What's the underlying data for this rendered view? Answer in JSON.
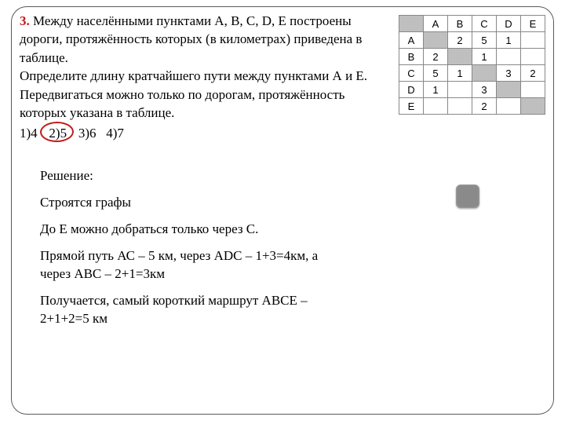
{
  "problem": {
    "number": "3.",
    "text_part1": " Между  населёнными  пунктами А, B, C, D, E построены дороги, протяжённость которых (в километрах) приведена в таблице.",
    "text_part2": "Определите длину кратчайшего пути между пунктами А и E. Передвигаться можно только по дорогам, протяжённость которых указана в таблице.",
    "answers": {
      "a1": "1)4",
      "a2": "2)5",
      "a3": "3)6",
      "a4": "4)7"
    }
  },
  "table": {
    "headers": [
      "",
      "A",
      "B",
      "C",
      "D",
      "E"
    ],
    "rows": [
      {
        "label": "A",
        "cells": [
          "",
          "2",
          "5",
          "1",
          ""
        ],
        "shaded_index": 0
      },
      {
        "label": "B",
        "cells": [
          "2",
          "",
          "1",
          "",
          ""
        ],
        "shaded_index": 1
      },
      {
        "label": "C",
        "cells": [
          "5",
          "1",
          "",
          "3",
          "2"
        ],
        "shaded_index": 2
      },
      {
        "label": "D",
        "cells": [
          "1",
          "",
          "3",
          "",
          ""
        ],
        "shaded_index": 3
      },
      {
        "label": "E",
        "cells": [
          "",
          "",
          "2",
          "",
          ""
        ],
        "shaded_index": 4
      }
    ]
  },
  "solution": {
    "s1": "Решение:",
    "s2": "Строятся графы",
    "s3": "До Е можно добраться только через С.",
    "s4": "Прямой путь АС – 5 км, через АDС – 1+3=4км, а через АВС – 2+1=3км",
    "s5": "Получается, самый короткий маршрут АВСЕ – 2+1+2=5 км"
  }
}
